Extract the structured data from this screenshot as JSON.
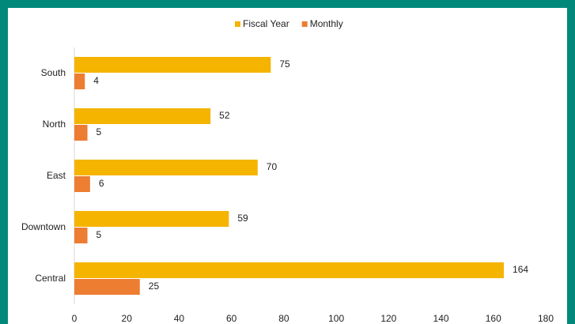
{
  "chart_data": {
    "type": "hbar",
    "categories": [
      "South",
      "North",
      "East",
      "Downtown",
      "Central"
    ],
    "series": [
      {
        "name": "Fiscal Year",
        "color": "#f5b400",
        "values": [
          75,
          52,
          70,
          59,
          164
        ]
      },
      {
        "name": "Monthly",
        "color": "#ed7d31",
        "values": [
          4,
          5,
          6,
          5,
          25
        ]
      }
    ],
    "xlim": [
      0,
      180
    ],
    "xticks": [
      0,
      20,
      40,
      60,
      80,
      100,
      120,
      140,
      160,
      180
    ],
    "legend": "top",
    "grid": false
  }
}
